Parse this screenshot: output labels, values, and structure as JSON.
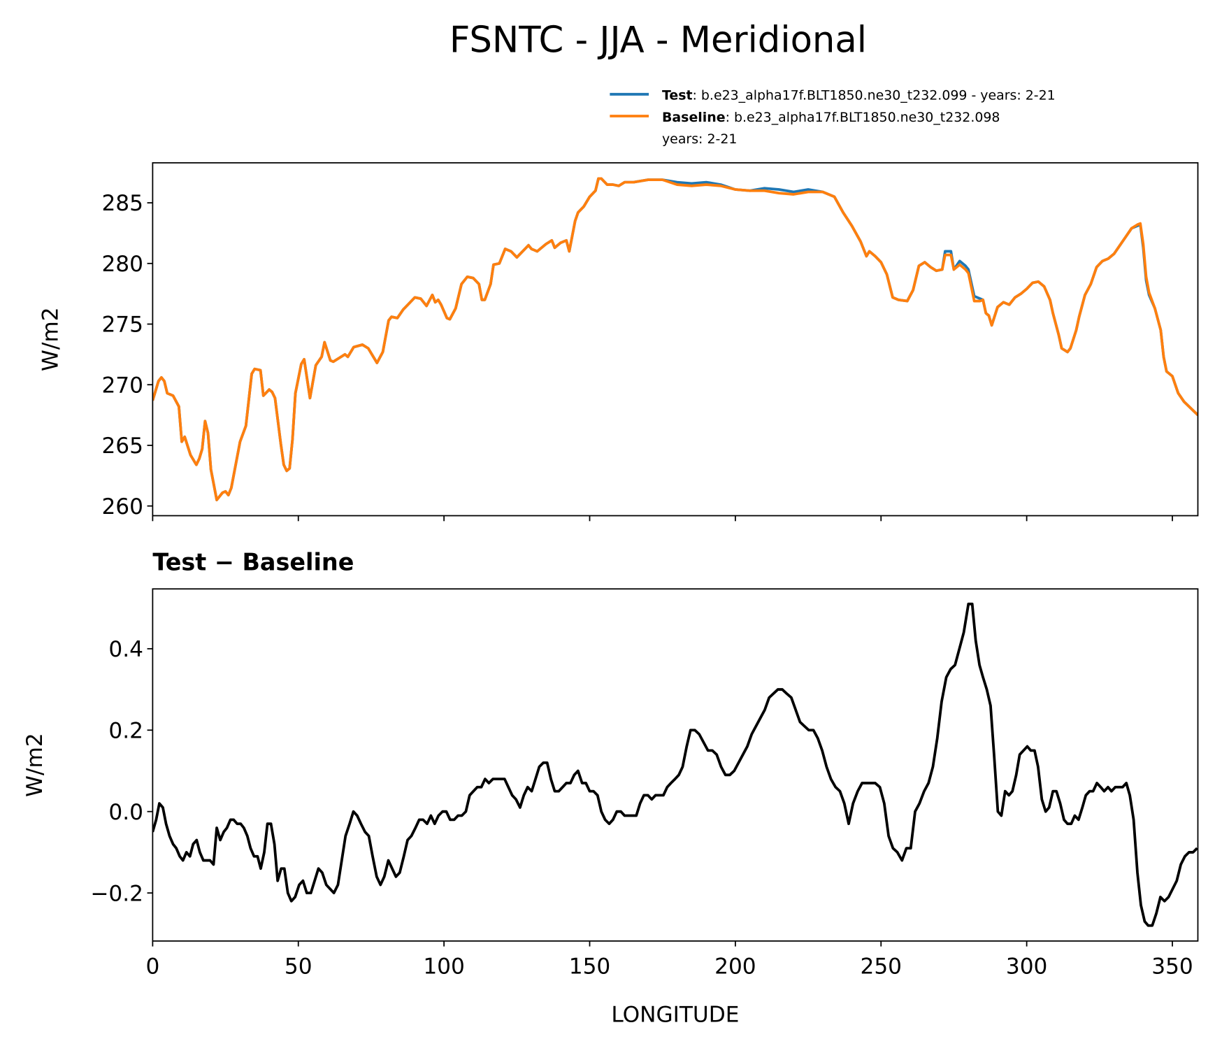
{
  "chart_data": [
    {
      "type": "line",
      "title": "FSNTC - JJA - Meridional",
      "ylabel": "W/m2",
      "x": [
        0,
        2,
        3,
        4,
        5,
        7,
        9,
        10,
        11,
        13,
        15,
        16,
        17,
        18,
        19,
        20,
        22,
        24,
        25,
        26,
        27,
        30,
        32,
        34,
        35,
        37,
        38,
        40,
        41,
        42,
        44,
        45,
        46,
        47,
        48,
        49,
        51,
        52,
        54,
        56,
        58,
        59,
        61,
        62,
        64,
        66,
        67,
        69,
        72,
        74,
        77,
        79,
        81,
        82,
        84,
        86,
        88,
        90,
        92,
        94,
        96,
        97,
        98,
        99,
        101,
        102,
        104,
        106,
        108,
        110,
        112,
        113,
        114,
        116,
        117,
        119,
        121,
        123,
        125,
        127,
        129,
        130,
        132,
        135,
        137,
        138,
        140,
        142,
        143,
        145,
        146,
        148,
        150,
        152,
        153,
        154,
        156,
        158,
        160,
        162,
        165,
        170,
        175,
        180,
        185,
        190,
        195,
        200,
        205,
        210,
        215,
        220,
        225,
        230,
        234,
        237,
        240,
        243,
        245,
        246,
        248,
        250,
        252,
        254,
        256,
        259,
        261,
        263,
        265,
        267,
        269,
        271,
        272,
        274,
        275,
        277,
        279,
        280,
        282,
        284,
        285,
        286,
        287,
        288,
        290,
        292,
        294,
        296,
        298,
        300,
        302,
        304,
        306,
        308,
        309,
        311,
        312,
        314,
        315,
        317,
        318,
        320,
        322,
        324,
        326,
        328,
        330,
        332,
        334,
        336,
        338,
        339,
        340,
        341,
        342,
        344,
        346,
        347,
        348,
        350,
        352,
        354,
        358.75
      ],
      "series": [
        {
          "name": "Test",
          "legend_label": [
            ": b.e23_alpha17f.BLT1850.ne30_t232.099 - years: 2-21"
          ],
          "color": "#1f77b4",
          "values": [
            268.7,
            270.3,
            270.6,
            270.3,
            269.3,
            269.1,
            268.2,
            265.3,
            265.7,
            264.2,
            263.4,
            263.9,
            264.7,
            267.0,
            266.0,
            263.0,
            260.5,
            261.1,
            261.2,
            260.9,
            261.5,
            265.3,
            266.6,
            270.9,
            271.3,
            271.2,
            269.1,
            269.6,
            269.4,
            268.9,
            265.1,
            263.4,
            262.9,
            263.1,
            265.5,
            269.3,
            271.7,
            272.1,
            268.9,
            271.6,
            272.3,
            273.5,
            272.0,
            271.9,
            272.2,
            272.5,
            272.3,
            273.1,
            273.3,
            273.0,
            271.8,
            272.7,
            275.3,
            275.6,
            275.5,
            276.2,
            276.7,
            277.2,
            277.1,
            276.5,
            277.4,
            276.8,
            277.0,
            276.6,
            275.5,
            275.4,
            276.3,
            278.3,
            278.9,
            278.8,
            278.3,
            277.0,
            277.0,
            278.3,
            279.9,
            280.0,
            281.2,
            281.0,
            280.5,
            281.0,
            281.5,
            281.2,
            281.0,
            281.6,
            281.9,
            281.3,
            281.7,
            281.9,
            281.0,
            283.5,
            284.2,
            284.7,
            285.5,
            286.0,
            287.0,
            287.0,
            286.5,
            286.5,
            286.4,
            286.7,
            286.7,
            286.9,
            286.9,
            286.7,
            286.6,
            286.7,
            286.5,
            286.1,
            286.0,
            286.2,
            286.1,
            285.9,
            286.1,
            285.9,
            285.5,
            284.2,
            283.1,
            281.8,
            280.6,
            281.0,
            280.6,
            280.1,
            279.1,
            277.2,
            277.0,
            276.9,
            277.8,
            279.8,
            280.1,
            279.7,
            279.4,
            279.5,
            281.0,
            281.0,
            279.5,
            280.2,
            279.8,
            279.5,
            277.3,
            277.1,
            277.0,
            275.9,
            275.7,
            274.9,
            276.4,
            276.8,
            276.6,
            277.2,
            277.5,
            277.9,
            278.4,
            278.5,
            278.1,
            277.0,
            275.9,
            274.1,
            273.0,
            272.7,
            273.0,
            274.5,
            275.6,
            277.4,
            278.3,
            279.7,
            280.2,
            280.4,
            280.8,
            281.5,
            282.2,
            282.9,
            283.1,
            283.2,
            281.3,
            278.6,
            277.4,
            276.3,
            274.5,
            272.3,
            271.1,
            270.7,
            269.3,
            268.6,
            267.5
          ]
        },
        {
          "name": "Baseline",
          "legend_label": [
            ": b.e23_alpha17f.BLT1850.ne30_t232.098",
            "years: 2-21"
          ],
          "color": "#ff7f0e",
          "values": [
            268.7,
            270.3,
            270.6,
            270.3,
            269.3,
            269.1,
            268.2,
            265.3,
            265.7,
            264.2,
            263.4,
            263.9,
            264.7,
            267.0,
            266.0,
            263.0,
            260.5,
            261.1,
            261.2,
            260.9,
            261.5,
            265.3,
            266.6,
            270.9,
            271.3,
            271.2,
            269.1,
            269.6,
            269.4,
            268.9,
            265.1,
            263.4,
            262.9,
            263.1,
            265.5,
            269.3,
            271.7,
            272.1,
            268.9,
            271.6,
            272.3,
            273.5,
            272.0,
            271.9,
            272.2,
            272.5,
            272.3,
            273.1,
            273.3,
            273.0,
            271.8,
            272.7,
            275.3,
            275.6,
            275.5,
            276.2,
            276.7,
            277.2,
            277.1,
            276.5,
            277.4,
            276.8,
            277.0,
            276.6,
            275.5,
            275.4,
            276.3,
            278.3,
            278.9,
            278.8,
            278.3,
            277.0,
            277.0,
            278.3,
            279.9,
            280.0,
            281.2,
            281.0,
            280.5,
            281.0,
            281.5,
            281.2,
            281.0,
            281.6,
            281.9,
            281.3,
            281.7,
            281.9,
            281.0,
            283.5,
            284.2,
            284.7,
            285.5,
            286.0,
            287.0,
            287.0,
            286.5,
            286.5,
            286.4,
            286.7,
            286.7,
            286.9,
            286.9,
            286.5,
            286.4,
            286.5,
            286.4,
            286.1,
            286.0,
            286.0,
            285.8,
            285.7,
            285.9,
            285.9,
            285.5,
            284.2,
            283.1,
            281.8,
            280.6,
            281.0,
            280.6,
            280.1,
            279.1,
            277.2,
            277.0,
            276.9,
            277.8,
            279.8,
            280.1,
            279.7,
            279.4,
            279.5,
            280.7,
            280.7,
            279.5,
            279.9,
            279.5,
            279.2,
            276.9,
            276.9,
            277.0,
            275.9,
            275.7,
            274.9,
            276.4,
            276.8,
            276.6,
            277.2,
            277.5,
            277.9,
            278.4,
            278.5,
            278.1,
            277.0,
            275.9,
            274.1,
            273.0,
            272.7,
            273.0,
            274.5,
            275.6,
            277.4,
            278.3,
            279.7,
            280.2,
            280.4,
            280.8,
            281.5,
            282.2,
            282.9,
            283.2,
            283.3,
            281.6,
            278.9,
            277.6,
            276.3,
            274.5,
            272.3,
            271.1,
            270.7,
            269.3,
            268.6,
            267.5
          ]
        }
      ],
      "xlim": [
        0,
        358.75
      ],
      "xticks": [
        0,
        50,
        100,
        150,
        200,
        250,
        300,
        350
      ],
      "show_xtick_labels": false,
      "ylim": [
        259.2,
        288.3
      ],
      "yticks": [
        260,
        265,
        270,
        275,
        280,
        285
      ]
    },
    {
      "type": "line",
      "title": "Test − Baseline",
      "xlabel": "LONGITUDE",
      "ylabel": "W/m2",
      "x": [
        0,
        1.2,
        2.3,
        3.5,
        4.6,
        5.8,
        7.0,
        8.1,
        9.3,
        10.4,
        11.6,
        12.8,
        13.9,
        15.1,
        16.2,
        17.4,
        18.6,
        19.7,
        20.9,
        22.0,
        23.2,
        24.4,
        25.5,
        26.7,
        27.8,
        29.0,
        30.2,
        31.3,
        32.5,
        33.6,
        34.8,
        36.0,
        37.1,
        38.3,
        39.4,
        40.6,
        41.8,
        42.9,
        44.1,
        45.2,
        46.4,
        47.6,
        48.9,
        50.3,
        51.6,
        52.9,
        54.3,
        55.6,
        56.9,
        58.2,
        59.6,
        60.9,
        62.2,
        63.6,
        64.9,
        66.2,
        67.6,
        68.9,
        70.2,
        71.5,
        72.9,
        74.2,
        75.5,
        76.9,
        78.2,
        79.5,
        80.9,
        82.2,
        83.5,
        84.8,
        86.2,
        87.5,
        88.8,
        90.2,
        91.5,
        92.8,
        94.2,
        95.5,
        96.8,
        98.1,
        99.5,
        100.8,
        102.1,
        103.5,
        104.8,
        106.1,
        107.5,
        108.8,
        110.1,
        111.4,
        112.8,
        114.1,
        115.4,
        116.8,
        118.1,
        119.4,
        120.8,
        122.1,
        123.4,
        124.7,
        126.1,
        127.4,
        128.7,
        130.1,
        131.4,
        132.7,
        134.1,
        135.4,
        136.7,
        138.0,
        139.4,
        140.7,
        142.0,
        143.4,
        144.7,
        146.0,
        147.4,
        148.7,
        150.0,
        151.3,
        152.7,
        154.0,
        155.3,
        156.7,
        158.0,
        159.3,
        160.7,
        162.0,
        163.3,
        164.6,
        166.0,
        167.3,
        168.6,
        170.0,
        171.3,
        172.6,
        174.0,
        175.3,
        176.6,
        177.9,
        179.3,
        180.6,
        181.9,
        183.3,
        184.6,
        186.1,
        187.6,
        189.1,
        190.6,
        192.1,
        193.6,
        195.1,
        196.6,
        198.1,
        199.6,
        201.1,
        202.6,
        204.1,
        205.6,
        207.1,
        208.6,
        210.1,
        211.6,
        213.1,
        214.6,
        216.1,
        217.6,
        219.2,
        220.7,
        222.2,
        223.7,
        225.2,
        226.8,
        228.3,
        229.8,
        231.3,
        232.8,
        234.4,
        235.9,
        237.4,
        238.9,
        240.4,
        242.0,
        243.5,
        245.0,
        246.5,
        248.0,
        249.6,
        251.1,
        252.6,
        254.1,
        255.6,
        257.2,
        258.7,
        260.2,
        261.7,
        263.2,
        264.8,
        266.3,
        267.8,
        269.3,
        270.8,
        272.4,
        273.9,
        275.4,
        276.9,
        278.4,
        280.0,
        281.3,
        282.5,
        283.8,
        285.0,
        286.3,
        287.6,
        288.8,
        290.1,
        291.3,
        292.6,
        293.9,
        295.1,
        296.4,
        297.6,
        298.9,
        300.2,
        301.4,
        302.7,
        303.9,
        305.2,
        306.5,
        307.7,
        309.0,
        310.2,
        311.5,
        312.8,
        314.0,
        315.3,
        316.5,
        317.8,
        319.1,
        320.3,
        321.6,
        322.8,
        324.1,
        325.4,
        326.6,
        327.9,
        329.1,
        330.4,
        331.7,
        332.9,
        334.2,
        335.4,
        336.7,
        338.0,
        339.2,
        340.5,
        341.7,
        343.1,
        344.5,
        345.9,
        347.3,
        348.7,
        350.1,
        351.5,
        352.9,
        354.3,
        355.7,
        357.1,
        358.5
      ],
      "series": [
        {
          "color": "#000000",
          "values": [
            -0.05,
            -0.02,
            0.02,
            0.01,
            -0.03,
            -0.06,
            -0.08,
            -0.09,
            -0.11,
            -0.12,
            -0.1,
            -0.11,
            -0.08,
            -0.07,
            -0.1,
            -0.12,
            -0.12,
            -0.12,
            -0.13,
            -0.04,
            -0.07,
            -0.05,
            -0.04,
            -0.02,
            -0.02,
            -0.03,
            -0.03,
            -0.04,
            -0.06,
            -0.09,
            -0.11,
            -0.11,
            -0.14,
            -0.1,
            -0.03,
            -0.03,
            -0.08,
            -0.17,
            -0.14,
            -0.14,
            -0.2,
            -0.22,
            -0.21,
            -0.18,
            -0.17,
            -0.2,
            -0.2,
            -0.17,
            -0.14,
            -0.15,
            -0.18,
            -0.19,
            -0.2,
            -0.18,
            -0.12,
            -0.06,
            -0.03,
            0.0,
            -0.01,
            -0.03,
            -0.05,
            -0.06,
            -0.11,
            -0.16,
            -0.18,
            -0.16,
            -0.12,
            -0.14,
            -0.16,
            -0.15,
            -0.11,
            -0.07,
            -0.06,
            -0.04,
            -0.02,
            -0.02,
            -0.03,
            -0.01,
            -0.03,
            -0.01,
            0.0,
            0.0,
            -0.02,
            -0.02,
            -0.01,
            -0.01,
            0.0,
            0.04,
            0.05,
            0.06,
            0.06,
            0.08,
            0.07,
            0.08,
            0.08,
            0.08,
            0.08,
            0.06,
            0.04,
            0.03,
            0.01,
            0.04,
            0.06,
            0.05,
            0.08,
            0.11,
            0.12,
            0.12,
            0.08,
            0.05,
            0.05,
            0.06,
            0.07,
            0.07,
            0.09,
            0.1,
            0.07,
            0.07,
            0.05,
            0.05,
            0.04,
            0.0,
            -0.02,
            -0.03,
            -0.02,
            0.0,
            0.0,
            -0.01,
            -0.01,
            -0.01,
            -0.01,
            0.02,
            0.04,
            0.04,
            0.03,
            0.04,
            0.04,
            0.04,
            0.06,
            0.07,
            0.08,
            0.09,
            0.11,
            0.16,
            0.2,
            0.2,
            0.19,
            0.17,
            0.15,
            0.15,
            0.14,
            0.11,
            0.09,
            0.09,
            0.1,
            0.12,
            0.14,
            0.16,
            0.19,
            0.21,
            0.23,
            0.25,
            0.28,
            0.29,
            0.3,
            0.3,
            0.29,
            0.28,
            0.25,
            0.22,
            0.21,
            0.2,
            0.2,
            0.18,
            0.15,
            0.11,
            0.08,
            0.06,
            0.05,
            0.02,
            -0.03,
            0.02,
            0.05,
            0.07,
            0.07,
            0.07,
            0.07,
            0.06,
            0.02,
            -0.06,
            -0.09,
            -0.1,
            -0.12,
            -0.09,
            -0.09,
            0.0,
            0.02,
            0.05,
            0.07,
            0.11,
            0.18,
            0.27,
            0.33,
            0.35,
            0.36,
            0.4,
            0.44,
            0.51,
            0.51,
            0.42,
            0.36,
            0.33,
            0.3,
            0.26,
            0.14,
            0.0,
            -0.01,
            0.05,
            0.04,
            0.05,
            0.09,
            0.14,
            0.15,
            0.16,
            0.15,
            0.15,
            0.11,
            0.03,
            0.0,
            0.01,
            0.05,
            0.05,
            0.02,
            -0.02,
            -0.03,
            -0.03,
            -0.01,
            -0.02,
            0.01,
            0.04,
            0.05,
            0.05,
            0.07,
            0.06,
            0.05,
            0.06,
            0.05,
            0.06,
            0.06,
            0.06,
            0.07,
            0.04,
            -0.02,
            -0.15,
            -0.23,
            -0.27,
            -0.28,
            -0.28,
            -0.25,
            -0.21,
            -0.22,
            -0.21,
            -0.19,
            -0.17,
            -0.13,
            -0.11,
            -0.1,
            -0.1,
            -0.09
          ]
        }
      ],
      "xlim": [
        0,
        358.75
      ],
      "xticks": [
        0,
        50,
        100,
        150,
        200,
        250,
        300,
        350
      ],
      "show_xtick_labels": true,
      "ylim": [
        -0.318,
        0.547
      ],
      "yticks": [
        {
          "value": -0.2,
          "label": "−0.2"
        },
        {
          "value": 0,
          "label": "0.0"
        },
        0.2,
        0.4
      ]
    }
  ]
}
